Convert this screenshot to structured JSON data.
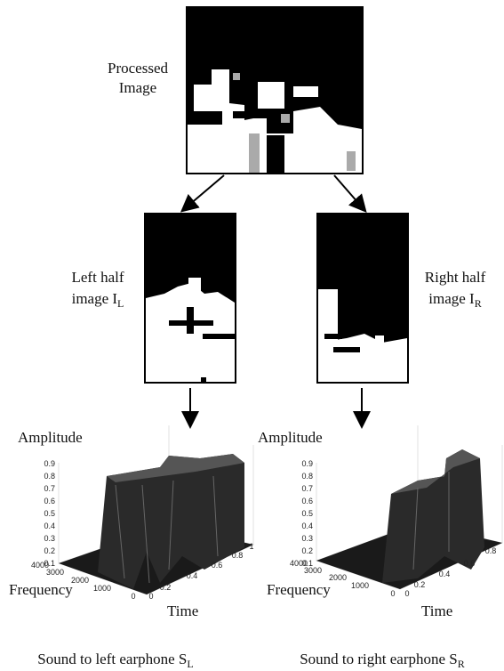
{
  "nodes": [
    {
      "lines": [
        "Processed",
        "Image"
      ]
    },
    {
      "lines": [
        "Left half",
        "image I"
      ],
      "subscript": "L"
    },
    {
      "lines": [
        "Right half",
        "image I"
      ],
      "subscript": "R"
    }
  ],
  "plots": [
    {
      "z_label": "Amplitude",
      "z_ticks": [
        "0.9",
        "0.8",
        "0.7",
        "0.6",
        "0.5",
        "0.4",
        "0.3",
        "0.2",
        "0.1"
      ],
      "x_label": "Frequency",
      "x_ticks": [
        "4000",
        "3000",
        "2000",
        "1000",
        "0"
      ],
      "y_label": "Time",
      "y_ticks": [
        "0",
        "0.2",
        "0.4",
        "0.6",
        "0.8",
        "1"
      ],
      "caption": "Sound to left earphone S",
      "caption_subscript": "L"
    },
    {
      "z_label": "Amplitude",
      "z_ticks": [
        "0.9",
        "0.8",
        "0.7",
        "0.6",
        "0.5",
        "0.4",
        "0.3",
        "0.2",
        "0.1"
      ],
      "x_label": "Frequency",
      "x_ticks": [
        "4000",
        "3000",
        "2000",
        "1000",
        "0"
      ],
      "y_label": "Time",
      "y_ticks": [
        "0",
        "0.2",
        "0.4",
        "0.6",
        "0.8"
      ],
      "caption": "Sound to right earphone S",
      "caption_subscript": "R"
    }
  ]
}
